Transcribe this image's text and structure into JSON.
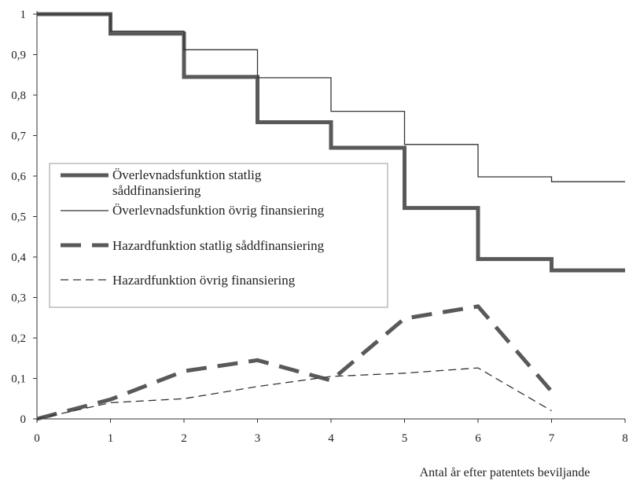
{
  "chart_data": {
    "type": "line",
    "xlabel": "Antal år efter patentets beviljande",
    "ylabel": "",
    "xlim": [
      0,
      8
    ],
    "ylim": [
      0,
      1
    ],
    "x_ticks": [
      "0",
      "1",
      "2",
      "3",
      "4",
      "5",
      "6",
      "7",
      "8"
    ],
    "y_ticks": [
      "0",
      "0,1",
      "0,2",
      "0,3",
      "0,4",
      "0,5",
      "0,6",
      "0,7",
      "0,8",
      "0,9",
      "1"
    ],
    "grid": false,
    "legend_position": "center-left",
    "series": [
      {
        "name": "Överlevnadsfunktion statlig såddfinansiering",
        "style": "step-thick-solid",
        "color": "#595959",
        "x": [
          0,
          1,
          2,
          3,
          4,
          5,
          6,
          7,
          8
        ],
        "y": [
          1.0,
          0.952,
          0.845,
          0.733,
          0.67,
          0.521,
          0.395,
          0.367,
          0.367
        ]
      },
      {
        "name": "Överlevnadsfunktion övrig finansiering",
        "style": "step-thin-solid",
        "color": "#333333",
        "x": [
          0,
          1,
          2,
          3,
          4,
          5,
          6,
          7,
          8
        ],
        "y": [
          1.0,
          0.958,
          0.912,
          0.843,
          0.76,
          0.678,
          0.598,
          0.586,
          0.586
        ]
      },
      {
        "name": "Hazardfunktion statlig såddfinansiering",
        "style": "line-thick-dashed",
        "color": "#595959",
        "x": [
          0,
          1,
          2,
          3,
          4,
          5,
          6,
          7
        ],
        "y": [
          0.0,
          0.048,
          0.118,
          0.145,
          0.095,
          0.248,
          0.278,
          0.068
        ]
      },
      {
        "name": "Hazardfunktion övrig finansiering",
        "style": "line-thin-dashed",
        "color": "#333333",
        "x": [
          0,
          1,
          2,
          3,
          4,
          5,
          6,
          7
        ],
        "y": [
          0.0,
          0.04,
          0.05,
          0.08,
          0.105,
          0.113,
          0.126,
          0.02
        ]
      }
    ],
    "legend": [
      {
        "lines": [
          "Överlevnadsfunktion statlig",
          "såddfinansiering"
        ]
      },
      {
        "lines": [
          "Överlevnadsfunktion övrig finansiering"
        ]
      },
      {
        "lines": [
          "Hazardfunktion statlig såddfinansiering"
        ]
      },
      {
        "lines": [
          "Hazardfunktion övrig finansiering"
        ]
      }
    ]
  }
}
